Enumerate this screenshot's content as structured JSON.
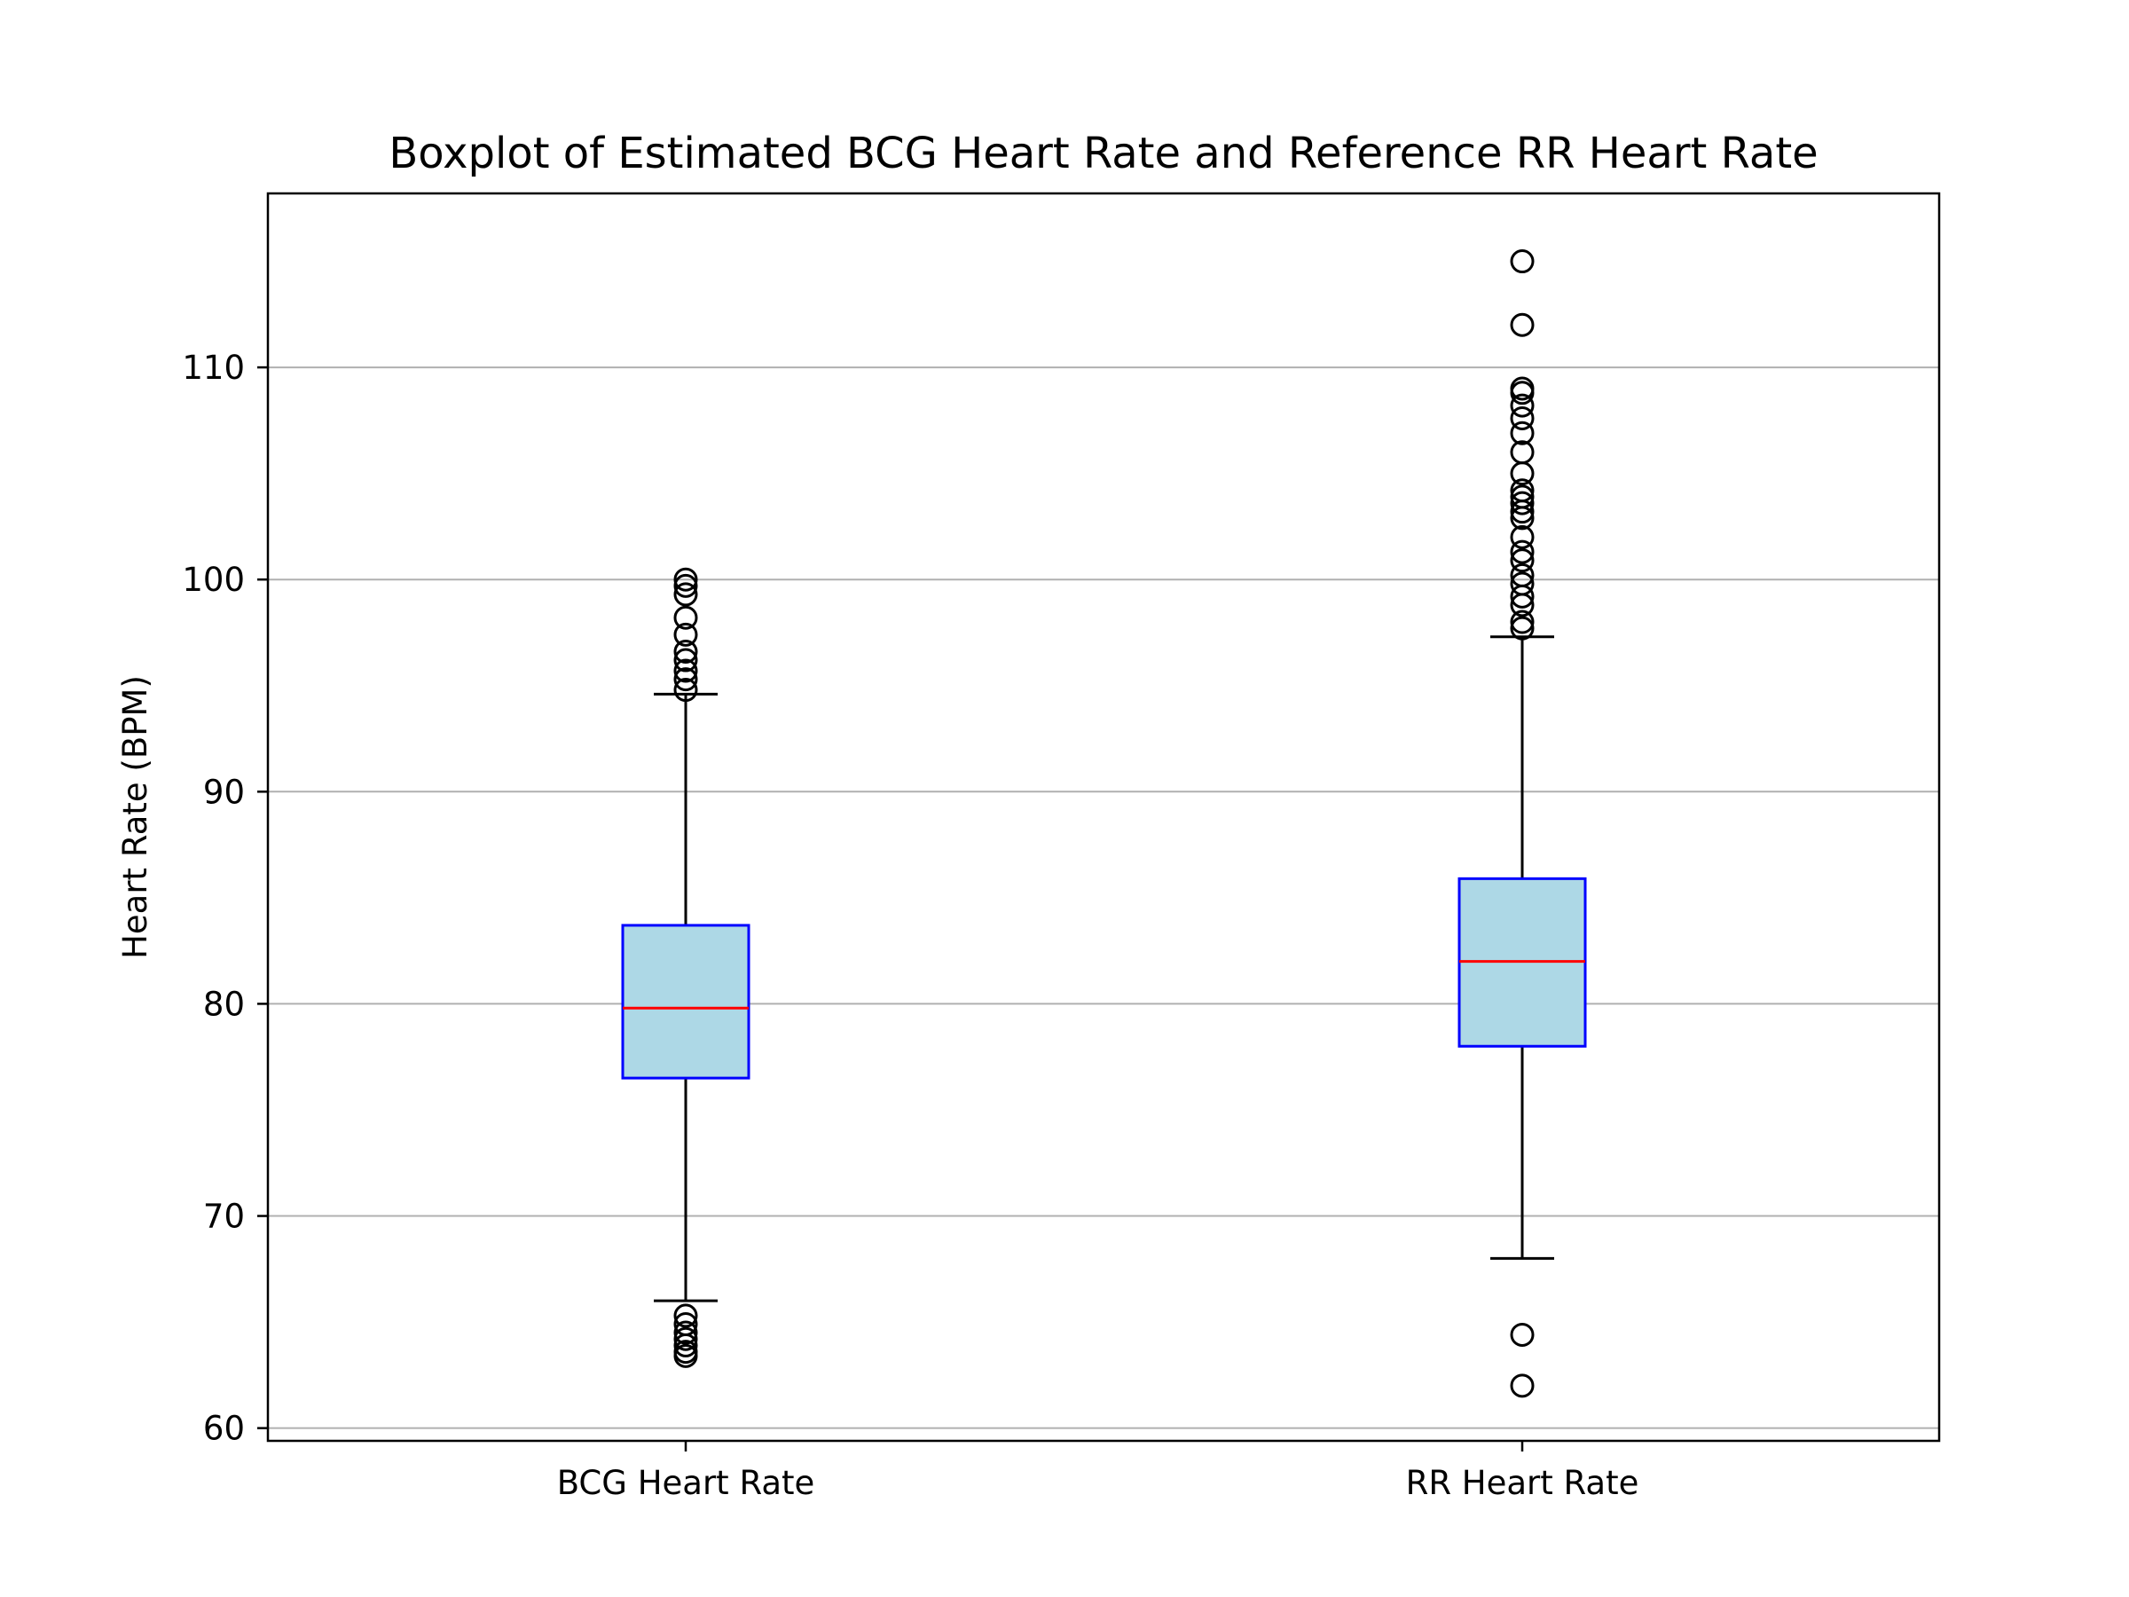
{
  "chart_data": {
    "type": "box",
    "title": "Boxplot of Estimated BCG Heart Rate and Reference RR Heart Rate",
    "xlabel": "",
    "ylabel": "Heart Rate (BPM)",
    "ylim": [
      59.4,
      118.2
    ],
    "yticks": [
      60,
      70,
      80,
      90,
      100,
      110
    ],
    "grid": "y",
    "categories": [
      "BCG Heart Rate",
      "RR Heart Rate"
    ],
    "boxes": [
      {
        "category": "BCG Heart Rate",
        "whisker_low": 66.0,
        "q1": 76.5,
        "median": 79.8,
        "q3": 83.7,
        "whisker_high": 94.6,
        "outliers": [
          63.4,
          63.6,
          63.9,
          64.2,
          64.5,
          64.9,
          65.3,
          94.8,
          95.3,
          95.7,
          96.2,
          96.6,
          97.4,
          98.2,
          99.3,
          99.7,
          100.0
        ]
      },
      {
        "category": "RR Heart Rate",
        "whisker_low": 68.0,
        "q1": 78.0,
        "median": 82.0,
        "q3": 85.9,
        "whisker_high": 97.3,
        "outliers": [
          62.0,
          64.4,
          97.7,
          98.0,
          98.8,
          99.2,
          99.8,
          100.2,
          100.9,
          101.3,
          102.0,
          102.9,
          103.2,
          103.6,
          103.9,
          104.2,
          105.0,
          106.0,
          106.9,
          107.6,
          108.2,
          108.8,
          109.0,
          112.0,
          115.0
        ]
      }
    ],
    "colors": {
      "box_fill": "#add8e6",
      "box_edge": "#0000ff",
      "median": "#ff0000",
      "whisker": "#000000",
      "outlier_edge": "#000000",
      "grid": "#b0b0b0"
    }
  }
}
